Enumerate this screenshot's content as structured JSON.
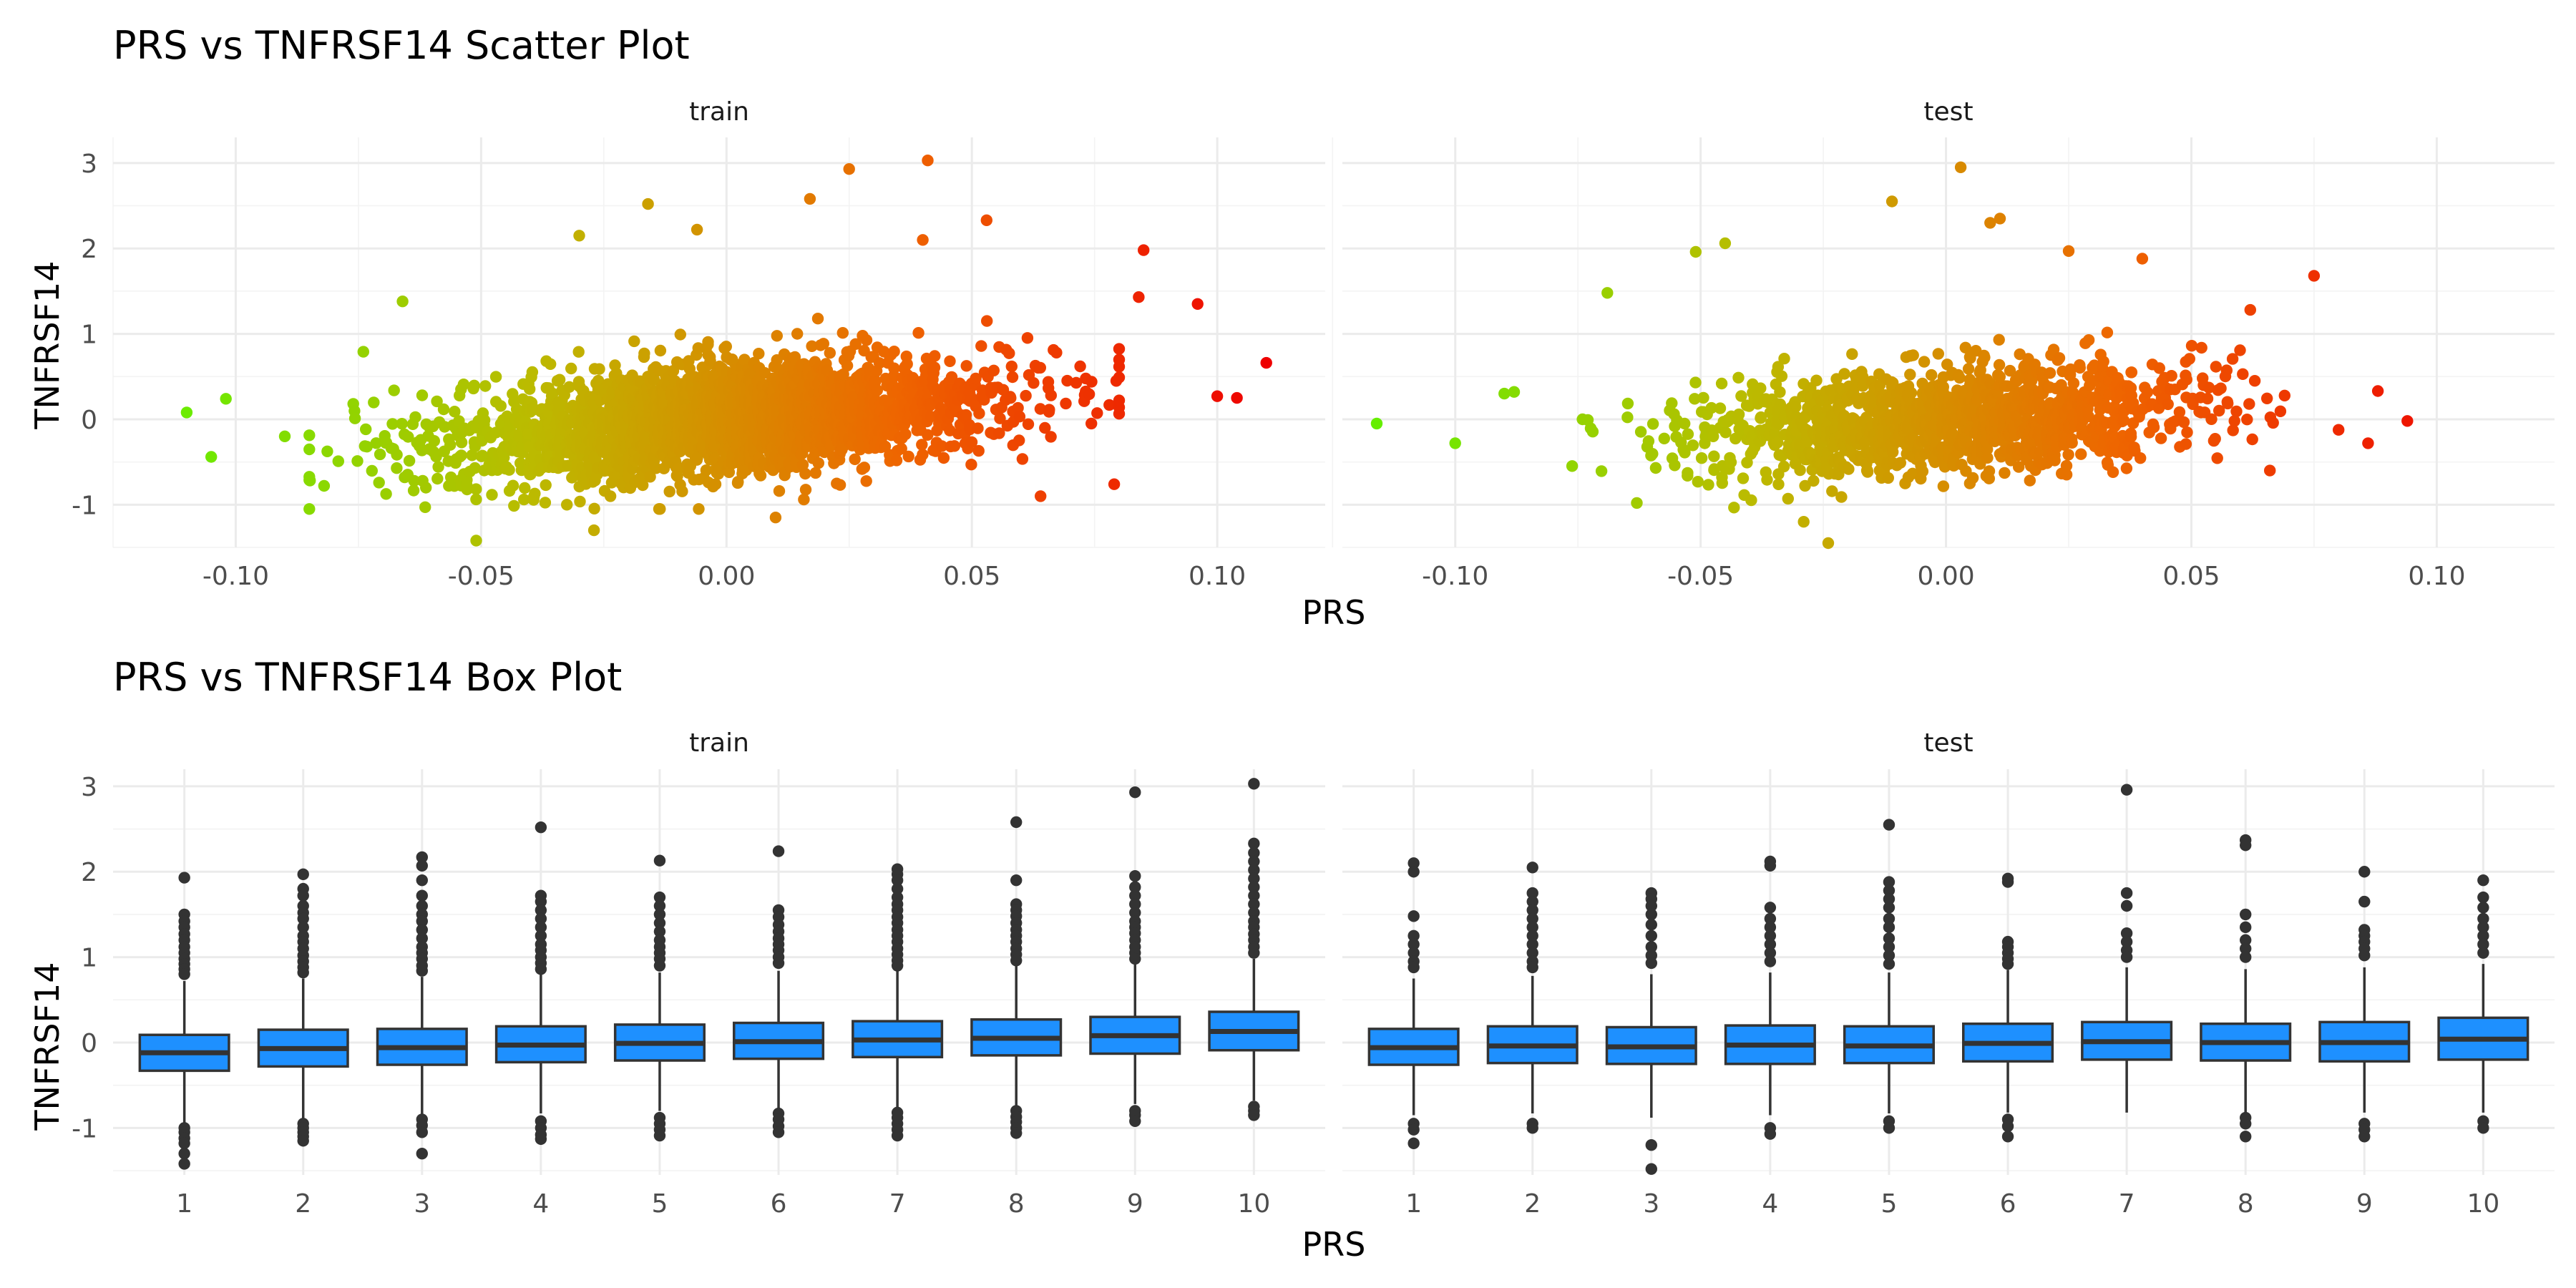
{
  "chart_data": [
    {
      "type": "scatter",
      "title": "PRS vs TNFRSF14 Scatter Plot",
      "xlabel": "PRS",
      "ylabel": "TNFRSF14",
      "color_gradient": [
        "#66ee00",
        "#bbbb00",
        "#ee6600",
        "#ee0000"
      ],
      "color_scale_range": [
        -0.115,
        0.11
      ],
      "grid": true,
      "panels": [
        {
          "label": "train",
          "xlim": [
            -0.125,
            0.122
          ],
          "ylim": [
            -1.5,
            3.3
          ],
          "x_ticks": [
            -0.1,
            -0.05,
            0.0,
            0.05,
            0.1
          ],
          "x_tick_labels": [
            "-0.10",
            "-0.05",
            "0.00",
            "0.05",
            "0.10"
          ],
          "y_ticks": [
            -1,
            0,
            1,
            2,
            3
          ],
          "y_tick_labels": [
            "-1",
            "0",
            "1",
            "2",
            "3"
          ],
          "bulk": {
            "x_center": 0.0,
            "x_sd": 0.028,
            "y_center": 0.0,
            "y_sd": 0.33,
            "slope": 4.5,
            "n": 2600
          },
          "points": [
            {
              "x": 0.041,
              "y": 3.03
            },
            {
              "x": 0.025,
              "y": 2.93
            },
            {
              "x": -0.016,
              "y": 2.52
            },
            {
              "x": 0.017,
              "y": 2.58
            },
            {
              "x": -0.03,
              "y": 2.15
            },
            {
              "x": -0.006,
              "y": 2.22
            },
            {
              "x": 0.053,
              "y": 2.33
            },
            {
              "x": 0.04,
              "y": 2.1
            },
            {
              "x": 0.085,
              "y": 1.98
            },
            {
              "x": 0.11,
              "y": 0.66
            },
            {
              "x": 0.1,
              "y": 0.27
            },
            {
              "x": 0.104,
              "y": 0.25
            },
            {
              "x": 0.096,
              "y": 1.35
            },
            {
              "x": 0.084,
              "y": 1.43
            },
            {
              "x": -0.066,
              "y": 1.38
            },
            {
              "x": -0.11,
              "y": 0.08
            },
            {
              "x": -0.102,
              "y": 0.24
            },
            {
              "x": -0.105,
              "y": -0.44
            },
            {
              "x": -0.09,
              "y": -0.2
            },
            {
              "x": -0.082,
              "y": -0.78
            },
            {
              "x": -0.051,
              "y": -1.42
            },
            {
              "x": -0.027,
              "y": -1.3
            },
            {
              "x": 0.01,
              "y": -1.15
            },
            {
              "x": 0.079,
              "y": -0.76
            },
            {
              "x": 0.064,
              "y": -0.9
            },
            {
              "x": -0.074,
              "y": 0.79
            }
          ]
        },
        {
          "label": "test",
          "xlim": [
            -0.123,
            0.124
          ],
          "ylim": [
            -1.5,
            3.3
          ],
          "x_ticks": [
            -0.1,
            -0.05,
            0.0,
            0.05,
            0.1
          ],
          "x_tick_labels": [
            "-0.10",
            "-0.05",
            "0.00",
            "0.05",
            "0.10"
          ],
          "y_ticks": [
            -1,
            0,
            1,
            2,
            3
          ],
          "y_tick_labels": [
            "-1",
            "0",
            "1",
            "2",
            "3"
          ],
          "bulk": {
            "x_center": 0.0,
            "x_sd": 0.026,
            "y_center": 0.0,
            "y_sd": 0.3,
            "slope": 3.5,
            "n": 1400
          },
          "points": [
            {
              "x": 0.003,
              "y": 2.95
            },
            {
              "x": -0.011,
              "y": 2.55
            },
            {
              "x": 0.009,
              "y": 2.3
            },
            {
              "x": 0.011,
              "y": 2.35
            },
            {
              "x": -0.116,
              "y": -0.05
            },
            {
              "x": -0.1,
              "y": -0.28
            },
            {
              "x": -0.09,
              "y": 0.3
            },
            {
              "x": -0.088,
              "y": 0.32
            },
            {
              "x": 0.094,
              "y": -0.02
            },
            {
              "x": 0.088,
              "y": 0.33
            },
            {
              "x": 0.075,
              "y": 1.68
            },
            {
              "x": 0.086,
              "y": -0.28
            },
            {
              "x": -0.069,
              "y": 1.48
            },
            {
              "x": -0.051,
              "y": 1.96
            },
            {
              "x": -0.045,
              "y": 2.06
            },
            {
              "x": -0.024,
              "y": -1.45
            },
            {
              "x": -0.029,
              "y": -1.2
            },
            {
              "x": -0.063,
              "y": -0.98
            },
            {
              "x": 0.025,
              "y": 1.97
            },
            {
              "x": 0.04,
              "y": 1.88
            },
            {
              "x": 0.062,
              "y": 1.28
            },
            {
              "x": 0.066,
              "y": -0.6
            }
          ]
        }
      ]
    },
    {
      "type": "box",
      "title": "PRS vs TNFRSF14 Box Plot",
      "xlabel": "PRS",
      "ylabel": "TNFRSF14",
      "fill": "#1e90ff",
      "grid": true,
      "categories": [
        "1",
        "2",
        "3",
        "4",
        "5",
        "6",
        "7",
        "8",
        "9",
        "10"
      ],
      "y_ticks": [
        -1,
        0,
        1,
        2,
        3
      ],
      "y_tick_labels": [
        "-1",
        "0",
        "1",
        "2",
        "3"
      ],
      "ylim": [
        -1.55,
        3.2
      ],
      "panels": [
        {
          "label": "train",
          "boxes": [
            {
              "q1": -0.33,
              "median": -0.12,
              "q3": 0.09,
              "lower": -0.95,
              "upper": 0.72,
              "outliers": [
                1.93,
                1.5,
                1.42,
                1.35,
                1.27,
                1.2,
                1.12,
                1.05,
                0.98,
                0.92,
                0.86,
                0.8,
                -1.0,
                -1.05,
                -1.12,
                -1.18,
                -1.3,
                -1.42
              ]
            },
            {
              "q1": -0.28,
              "median": -0.07,
              "q3": 0.15,
              "lower": -0.9,
              "upper": 0.75,
              "outliers": [
                1.97,
                1.8,
                1.72,
                1.6,
                1.52,
                1.45,
                1.35,
                1.25,
                1.18,
                1.1,
                1.02,
                0.95,
                0.88,
                0.82,
                -0.95,
                -1.0,
                -1.05,
                -1.1,
                -1.15
              ]
            },
            {
              "q1": -0.26,
              "median": -0.06,
              "q3": 0.16,
              "lower": -0.87,
              "upper": 0.77,
              "outliers": [
                2.17,
                2.07,
                1.9,
                1.72,
                1.6,
                1.5,
                1.42,
                1.32,
                1.22,
                1.12,
                1.05,
                0.98,
                0.9,
                0.84,
                -0.9,
                -0.97,
                -1.05,
                -1.3
              ]
            },
            {
              "q1": -0.23,
              "median": -0.03,
              "q3": 0.19,
              "lower": -0.83,
              "upper": 0.8,
              "outliers": [
                2.52,
                1.72,
                1.65,
                1.55,
                1.45,
                1.35,
                1.25,
                1.15,
                1.08,
                1.0,
                0.93,
                0.86,
                -0.92,
                -1.0,
                -1.08,
                -1.13
              ]
            },
            {
              "q1": -0.21,
              "median": -0.01,
              "q3": 0.21,
              "lower": -0.8,
              "upper": 0.82,
              "outliers": [
                2.13,
                1.7,
                1.6,
                1.5,
                1.4,
                1.3,
                1.2,
                1.12,
                1.05,
                0.98,
                0.9,
                -0.88,
                -0.95,
                -1.02,
                -1.09
              ]
            },
            {
              "q1": -0.19,
              "median": 0.01,
              "q3": 0.23,
              "lower": -0.78,
              "upper": 0.84,
              "outliers": [
                2.24,
                1.55,
                1.47,
                1.38,
                1.3,
                1.22,
                1.15,
                1.08,
                1.0,
                0.93,
                -0.83,
                -0.9,
                -0.98,
                -1.05
              ]
            },
            {
              "q1": -0.17,
              "median": 0.03,
              "q3": 0.25,
              "lower": -0.76,
              "upper": 0.86,
              "outliers": [
                2.03,
                1.97,
                1.9,
                1.8,
                1.7,
                1.62,
                1.55,
                1.47,
                1.4,
                1.32,
                1.25,
                1.18,
                1.1,
                1.03,
                0.96,
                0.9,
                -0.82,
                -0.88,
                -0.95,
                -1.02,
                -1.09
              ]
            },
            {
              "q1": -0.15,
              "median": 0.05,
              "q3": 0.27,
              "lower": -0.74,
              "upper": 0.9,
              "outliers": [
                2.58,
                1.9,
                1.62,
                1.55,
                1.48,
                1.4,
                1.32,
                1.25,
                1.18,
                1.1,
                1.03,
                0.96,
                -0.8,
                -0.87,
                -0.93,
                -1.0,
                -1.06
              ]
            },
            {
              "q1": -0.13,
              "median": 0.08,
              "q3": 0.3,
              "lower": -0.72,
              "upper": 0.93,
              "outliers": [
                2.93,
                1.95,
                1.82,
                1.72,
                1.62,
                1.52,
                1.42,
                1.35,
                1.28,
                1.2,
                1.12,
                1.05,
                0.98,
                -0.8,
                -0.85,
                -0.92
              ]
            },
            {
              "q1": -0.09,
              "median": 0.13,
              "q3": 0.36,
              "lower": -0.68,
              "upper": 0.98,
              "outliers": [
                3.03,
                2.33,
                2.22,
                2.12,
                2.02,
                1.92,
                1.82,
                1.72,
                1.62,
                1.52,
                1.42,
                1.35,
                1.27,
                1.2,
                1.12,
                1.05,
                -0.75,
                -0.8,
                -0.85
              ]
            }
          ]
        },
        {
          "label": "test",
          "boxes": [
            {
              "q1": -0.26,
              "median": -0.06,
              "q3": 0.16,
              "lower": -0.85,
              "upper": 0.75,
              "outliers": [
                2.1,
                2.0,
                1.48,
                1.25,
                1.15,
                1.05,
                0.95,
                0.88,
                -0.95,
                -1.02,
                -1.18
              ]
            },
            {
              "q1": -0.24,
              "median": -0.04,
              "q3": 0.19,
              "lower": -0.83,
              "upper": 0.78,
              "outliers": [
                2.05,
                1.75,
                1.65,
                1.55,
                1.45,
                1.35,
                1.25,
                1.15,
                1.05,
                0.95,
                0.88,
                -0.95,
                -1.0
              ]
            },
            {
              "q1": -0.25,
              "median": -0.05,
              "q3": 0.18,
              "lower": -0.88,
              "upper": 0.8,
              "outliers": [
                1.75,
                1.68,
                1.6,
                1.5,
                1.38,
                1.25,
                1.12,
                1.02,
                0.93,
                -1.2,
                -1.48
              ]
            },
            {
              "q1": -0.25,
              "median": -0.03,
              "q3": 0.2,
              "lower": -0.85,
              "upper": 0.82,
              "outliers": [
                2.12,
                2.07,
                1.58,
                1.45,
                1.35,
                1.25,
                1.15,
                1.05,
                0.95,
                -1.0,
                -1.07
              ]
            },
            {
              "q1": -0.24,
              "median": -0.04,
              "q3": 0.19,
              "lower": -0.83,
              "upper": 0.82,
              "outliers": [
                2.55,
                1.88,
                1.78,
                1.68,
                1.58,
                1.45,
                1.35,
                1.22,
                1.12,
                1.02,
                0.92,
                -0.92,
                -1.0
              ]
            },
            {
              "q1": -0.22,
              "median": -0.01,
              "q3": 0.22,
              "lower": -0.82,
              "upper": 0.85,
              "outliers": [
                1.92,
                1.88,
                1.18,
                1.12,
                1.05,
                0.98,
                0.92,
                -0.9,
                -0.98,
                -1.1
              ]
            },
            {
              "q1": -0.2,
              "median": 0.01,
              "q3": 0.24,
              "lower": -0.82,
              "upper": 0.88,
              "outliers": [
                2.96,
                1.75,
                1.6,
                1.28,
                1.18,
                1.08,
                1.0
              ]
            },
            {
              "q1": -0.21,
              "median": 0.0,
              "q3": 0.22,
              "lower": -0.82,
              "upper": 0.86,
              "outliers": [
                2.37,
                2.31,
                1.5,
                1.35,
                1.2,
                1.1,
                1.0,
                -0.88,
                -0.95,
                -1.1
              ]
            },
            {
              "q1": -0.22,
              "median": 0.0,
              "q3": 0.24,
              "lower": -0.82,
              "upper": 0.88,
              "outliers": [
                2.0,
                1.65,
                1.32,
                1.25,
                1.18,
                1.1,
                1.02,
                -0.95,
                -1.02,
                -1.1
              ]
            },
            {
              "q1": -0.2,
              "median": 0.04,
              "q3": 0.29,
              "lower": -0.82,
              "upper": 0.92,
              "outliers": [
                1.9,
                1.7,
                1.58,
                1.45,
                1.35,
                1.25,
                1.15,
                1.05,
                -0.92,
                -1.0
              ]
            }
          ]
        }
      ]
    }
  ]
}
